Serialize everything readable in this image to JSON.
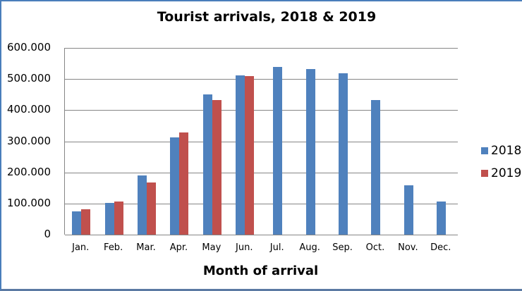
{
  "chart_data": {
    "type": "bar",
    "title": "Tourist arrivals, 2018 & 2019",
    "xlabel": "Month of arrival",
    "ylabel": "",
    "ylim": [
      0,
      600000
    ],
    "yticks": [
      "0",
      "100.000",
      "200.000",
      "300.000",
      "400.000",
      "500.000",
      "600.000"
    ],
    "grid": true,
    "legend_position": "right",
    "categories": [
      "Jan.",
      "Feb.",
      "Mar.",
      "Apr.",
      "May",
      "Jun.",
      "Jul.",
      "Aug.",
      "Sep.",
      "Oct.",
      "Nov.",
      "Dec."
    ],
    "series": [
      {
        "name": "2018",
        "color": "#4f81bd",
        "values": [
          75000,
          102000,
          191000,
          313000,
          450000,
          511000,
          540000,
          533000,
          519000,
          432000,
          158000,
          106000
        ]
      },
      {
        "name": "2019",
        "color": "#c0504d",
        "values": [
          81000,
          106000,
          168000,
          328000,
          433000,
          509000,
          null,
          null,
          null,
          null,
          null,
          null
        ]
      }
    ]
  }
}
